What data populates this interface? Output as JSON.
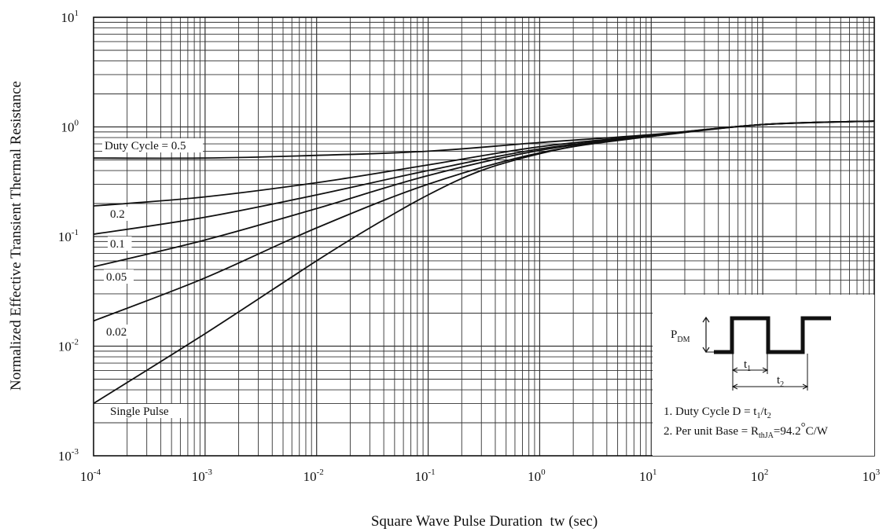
{
  "chart_data": {
    "type": "line",
    "x_scale": "log",
    "y_scale": "log",
    "xlabel": "Square Wave Pulse Duration  tw (sec)",
    "ylabel": "Normalized Effective Transient Thermal Resistance",
    "xlim": [
      0.0001,
      1000
    ],
    "ylim": [
      0.001,
      10
    ],
    "grid": true,
    "x_ticks": [
      {
        "base": "10",
        "exp": "-4",
        "value": 0.0001
      },
      {
        "base": "10",
        "exp": "-3",
        "value": 0.001
      },
      {
        "base": "10",
        "exp": "-2",
        "value": 0.01
      },
      {
        "base": "10",
        "exp": "-1",
        "value": 0.1
      },
      {
        "base": "10",
        "exp": "0",
        "value": 1
      },
      {
        "base": "10",
        "exp": "1",
        "value": 10
      },
      {
        "base": "10",
        "exp": "2",
        "value": 100
      },
      {
        "base": "10",
        "exp": "3",
        "value": 1000
      }
    ],
    "y_ticks": [
      {
        "base": "10",
        "exp": "-3",
        "value": 0.001
      },
      {
        "base": "10",
        "exp": "-2",
        "value": 0.01
      },
      {
        "base": "10",
        "exp": "-1",
        "value": 0.1
      },
      {
        "base": "10",
        "exp": "0",
        "value": 1
      },
      {
        "base": "10",
        "exp": "1",
        "value": 10
      }
    ],
    "series": [
      {
        "name": "Duty Cycle = 0.5",
        "x": [
          0.0001,
          0.001,
          0.01,
          0.1,
          1,
          10,
          100,
          1000
        ],
        "y": [
          0.52,
          0.52,
          0.55,
          0.6,
          0.72,
          0.85,
          1.05,
          1.13
        ]
      },
      {
        "name": "0.2",
        "x": [
          0.0001,
          0.001,
          0.01,
          0.1,
          1,
          10,
          100,
          1000
        ],
        "y": [
          0.19,
          0.23,
          0.31,
          0.45,
          0.66,
          0.84,
          1.05,
          1.13
        ]
      },
      {
        "name": "0.1",
        "x": [
          0.0001,
          0.001,
          0.01,
          0.1,
          1,
          10,
          100,
          1000
        ],
        "y": [
          0.105,
          0.15,
          0.24,
          0.4,
          0.63,
          0.83,
          1.05,
          1.13
        ]
      },
      {
        "name": "0.05",
        "x": [
          0.0001,
          0.001,
          0.01,
          0.1,
          1,
          10,
          100,
          1000
        ],
        "y": [
          0.053,
          0.093,
          0.18,
          0.36,
          0.61,
          0.83,
          1.05,
          1.13
        ]
      },
      {
        "name": "0.02",
        "x": [
          0.0001,
          0.001,
          0.01,
          0.1,
          1,
          10,
          100,
          1000
        ],
        "y": [
          0.017,
          0.042,
          0.12,
          0.3,
          0.58,
          0.82,
          1.05,
          1.13
        ]
      },
      {
        "name": "Single Pulse",
        "x": [
          0.0001,
          0.001,
          0.01,
          0.03,
          0.1,
          0.3,
          1,
          3,
          10,
          100,
          1000
        ],
        "y": [
          0.003,
          0.013,
          0.06,
          0.12,
          0.24,
          0.4,
          0.57,
          0.71,
          0.82,
          1.05,
          1.13
        ]
      }
    ],
    "inset": {
      "pdm_label": "P",
      "pdm_sub": "DM",
      "t1_label": "t",
      "t1_sub": "1",
      "t2_label": "t",
      "t2_sub": "2",
      "note1_a": "1. Duty Cycle D = t",
      "note1_sub1": "1",
      "note1_b": "/t",
      "note1_sub2": "2",
      "note2_a": "2. Per unit Base = R",
      "note2_sub": "thJA",
      "note2_b": "=94.2",
      "note2_deg": "°",
      "note2_c": "C/W"
    }
  }
}
